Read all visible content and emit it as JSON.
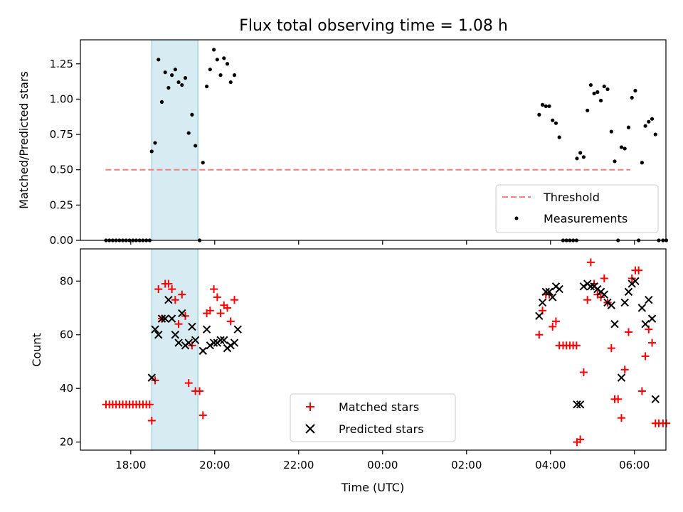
{
  "chart_data": [
    {
      "type": "scatter",
      "title": "Flux total observing time = 1.08 h",
      "xlabel": "",
      "ylabel": "Matched/Predicted stars",
      "xlim_hours": [
        16.8,
        30.75
      ],
      "ylim": [
        0,
        1.42
      ],
      "yticks": [
        0.0,
        0.25,
        0.5,
        0.75,
        1.0,
        1.25
      ],
      "ytick_labels": [
        "0.00",
        "0.25",
        "0.50",
        "0.75",
        "1.00",
        "1.25"
      ],
      "shaded_span_hours": [
        18.5,
        19.6
      ],
      "threshold": {
        "name": "Threshold",
        "y": 0.5,
        "x_start": 17.4,
        "x_end": 29.9,
        "color": "#ff7a7a"
      },
      "legend": {
        "placement": "lower right",
        "entries": [
          "Threshold",
          "Measurements"
        ]
      },
      "series": [
        {
          "name": "Measurements",
          "color": "#000000",
          "marker": "dot",
          "points": [
            [
              17.41,
              0
            ],
            [
              17.49,
              0
            ],
            [
              17.57,
              0
            ],
            [
              17.65,
              0
            ],
            [
              17.73,
              0
            ],
            [
              17.81,
              0
            ],
            [
              17.89,
              0
            ],
            [
              17.97,
              0
            ],
            [
              18.05,
              0
            ],
            [
              18.13,
              0
            ],
            [
              18.21,
              0
            ],
            [
              18.29,
              0
            ],
            [
              18.37,
              0
            ],
            [
              18.45,
              0
            ],
            [
              18.5,
              0.63
            ],
            [
              18.58,
              0.69
            ],
            [
              18.66,
              1.28
            ],
            [
              18.74,
              0.98
            ],
            [
              18.82,
              1.19
            ],
            [
              18.9,
              1.08
            ],
            [
              18.98,
              1.17
            ],
            [
              19.06,
              1.21
            ],
            [
              19.14,
              1.12
            ],
            [
              19.22,
              1.1
            ],
            [
              19.3,
              1.15
            ],
            [
              19.38,
              0.76
            ],
            [
              19.46,
              0.89
            ],
            [
              19.54,
              0.67
            ],
            [
              19.64,
              0
            ],
            [
              19.72,
              0.55
            ],
            [
              19.81,
              1.09
            ],
            [
              19.89,
              1.21
            ],
            [
              19.98,
              1.35
            ],
            [
              20.06,
              1.28
            ],
            [
              20.14,
              1.17
            ],
            [
              20.22,
              1.29
            ],
            [
              20.3,
              1.25
            ],
            [
              20.38,
              1.12
            ],
            [
              20.47,
              1.17
            ],
            [
              27.73,
              0.89
            ],
            [
              27.81,
              0.96
            ],
            [
              27.89,
              0.95
            ],
            [
              27.97,
              0.95
            ],
            [
              28.05,
              0.85
            ],
            [
              28.13,
              0.83
            ],
            [
              28.21,
              0.73
            ],
            [
              28.3,
              0
            ],
            [
              28.38,
              0
            ],
            [
              28.46,
              0
            ],
            [
              28.54,
              0
            ],
            [
              28.62,
              0
            ],
            [
              28.63,
              0.58
            ],
            [
              28.71,
              0.62
            ],
            [
              28.79,
              0.59
            ],
            [
              28.88,
              0.92
            ],
            [
              28.96,
              1.1
            ],
            [
              29.04,
              1.04
            ],
            [
              29.12,
              1.05
            ],
            [
              29.2,
              0.99
            ],
            [
              29.28,
              1.09
            ],
            [
              29.36,
              1.07
            ],
            [
              29.45,
              0.77
            ],
            [
              29.53,
              0.56
            ],
            [
              29.61,
              0
            ],
            [
              29.69,
              0.66
            ],
            [
              29.77,
              0.65
            ],
            [
              29.86,
              0.8
            ],
            [
              29.94,
              1.01
            ],
            [
              30.02,
              1.06
            ],
            [
              30.1,
              0
            ],
            [
              30.18,
              0.55
            ],
            [
              30.26,
              0.81
            ],
            [
              30.34,
              0.84
            ],
            [
              30.42,
              0.86
            ],
            [
              30.5,
              0.75
            ],
            [
              30.58,
              0
            ],
            [
              30.68,
              0
            ],
            [
              30.76,
              0
            ]
          ]
        }
      ]
    },
    {
      "type": "scatter",
      "title": "",
      "xlabel": "Time (UTC)",
      "ylabel": "Count",
      "xlim_hours": [
        16.8,
        30.75
      ],
      "ylim": [
        17,
        92
      ],
      "yticks": [
        20,
        40,
        60,
        80
      ],
      "ytick_labels": [
        "20",
        "40",
        "60",
        "80"
      ],
      "xticks_hours": [
        18,
        20,
        22,
        24,
        26,
        28,
        30
      ],
      "xtick_labels": [
        "18:00",
        "20:00",
        "22:00",
        "00:00",
        "02:00",
        "04:00",
        "06:00"
      ],
      "shaded_span_hours": [
        18.5,
        19.6
      ],
      "legend": {
        "placement": "lower center",
        "entries": [
          "Matched stars",
          "Predicted stars"
        ]
      },
      "series": [
        {
          "name": "Matched stars",
          "color": "#ff0000",
          "marker": "plus",
          "points": [
            [
              17.41,
              34
            ],
            [
              17.49,
              34
            ],
            [
              17.57,
              34
            ],
            [
              17.65,
              34
            ],
            [
              17.73,
              34
            ],
            [
              17.81,
              34
            ],
            [
              17.89,
              34
            ],
            [
              17.97,
              34
            ],
            [
              18.05,
              34
            ],
            [
              18.13,
              34
            ],
            [
              18.21,
              34
            ],
            [
              18.29,
              34
            ],
            [
              18.37,
              34
            ],
            [
              18.45,
              34
            ],
            [
              18.5,
              28
            ],
            [
              18.58,
              43
            ],
            [
              18.66,
              77
            ],
            [
              18.74,
              66
            ],
            [
              18.82,
              79
            ],
            [
              18.9,
              79
            ],
            [
              18.98,
              77
            ],
            [
              19.06,
              73
            ],
            [
              19.14,
              64
            ],
            [
              19.22,
              75
            ],
            [
              19.3,
              67
            ],
            [
              19.38,
              42
            ],
            [
              19.46,
              56
            ],
            [
              19.54,
              39
            ],
            [
              19.64,
              39
            ],
            [
              19.72,
              30
            ],
            [
              19.81,
              68
            ],
            [
              19.89,
              69
            ],
            [
              19.98,
              77
            ],
            [
              20.06,
              74
            ],
            [
              20.14,
              68
            ],
            [
              20.22,
              71
            ],
            [
              20.3,
              70
            ],
            [
              20.38,
              65
            ],
            [
              20.47,
              73
            ],
            [
              27.73,
              60
            ],
            [
              27.81,
              69
            ],
            [
              27.89,
              75
            ],
            [
              27.97,
              75
            ],
            [
              28.05,
              63
            ],
            [
              28.13,
              65
            ],
            [
              28.21,
              56
            ],
            [
              28.3,
              56
            ],
            [
              28.38,
              56
            ],
            [
              28.46,
              56
            ],
            [
              28.54,
              56
            ],
            [
              28.62,
              56
            ],
            [
              28.63,
              20
            ],
            [
              28.71,
              21
            ],
            [
              28.79,
              46
            ],
            [
              28.88,
              73
            ],
            [
              28.96,
              87
            ],
            [
              29.04,
              79
            ],
            [
              29.12,
              75
            ],
            [
              29.2,
              74
            ],
            [
              29.28,
              81
            ],
            [
              29.36,
              72
            ],
            [
              29.45,
              55
            ],
            [
              29.53,
              36
            ],
            [
              29.61,
              36
            ],
            [
              29.69,
              29
            ],
            [
              29.77,
              47
            ],
            [
              29.86,
              61
            ],
            [
              29.94,
              81
            ],
            [
              30.02,
              84
            ],
            [
              30.1,
              84
            ],
            [
              30.18,
              39
            ],
            [
              30.26,
              52
            ],
            [
              30.34,
              62
            ],
            [
              30.42,
              57
            ],
            [
              30.5,
              27
            ],
            [
              30.58,
              27
            ],
            [
              30.68,
              27
            ],
            [
              30.76,
              27
            ]
          ]
        },
        {
          "name": "Predicted stars",
          "color": "#000000",
          "marker": "x",
          "points": [
            [
              18.5,
              44
            ],
            [
              18.58,
              62
            ],
            [
              18.66,
              60
            ],
            [
              18.74,
              66
            ],
            [
              18.82,
              66
            ],
            [
              18.9,
              73
            ],
            [
              18.98,
              66
            ],
            [
              19.06,
              60
            ],
            [
              19.14,
              57
            ],
            [
              19.22,
              68
            ],
            [
              19.3,
              56
            ],
            [
              19.38,
              57
            ],
            [
              19.46,
              63
            ],
            [
              19.54,
              58
            ],
            [
              19.72,
              54
            ],
            [
              19.81,
              62
            ],
            [
              19.89,
              56
            ],
            [
              19.98,
              57
            ],
            [
              20.06,
              57
            ],
            [
              20.14,
              58
            ],
            [
              20.22,
              58
            ],
            [
              20.3,
              55
            ],
            [
              20.38,
              56
            ],
            [
              20.47,
              57
            ],
            [
              20.55,
              62
            ],
            [
              27.73,
              67
            ],
            [
              27.81,
              72
            ],
            [
              27.89,
              76
            ],
            [
              27.97,
              76
            ],
            [
              28.05,
              74
            ],
            [
              28.13,
              78
            ],
            [
              28.21,
              77
            ],
            [
              28.63,
              34
            ],
            [
              28.71,
              34
            ],
            [
              28.79,
              78
            ],
            [
              28.88,
              79
            ],
            [
              28.96,
              78
            ],
            [
              29.04,
              78
            ],
            [
              29.12,
              77
            ],
            [
              29.2,
              76
            ],
            [
              29.28,
              75
            ],
            [
              29.36,
              72
            ],
            [
              29.45,
              71
            ],
            [
              29.53,
              64
            ],
            [
              29.69,
              44
            ],
            [
              29.77,
              72
            ],
            [
              29.86,
              76
            ],
            [
              29.94,
              79
            ],
            [
              30.02,
              80
            ],
            [
              30.18,
              70
            ],
            [
              30.26,
              64
            ],
            [
              30.34,
              73
            ],
            [
              30.42,
              66
            ],
            [
              30.5,
              36
            ]
          ]
        }
      ]
    }
  ]
}
